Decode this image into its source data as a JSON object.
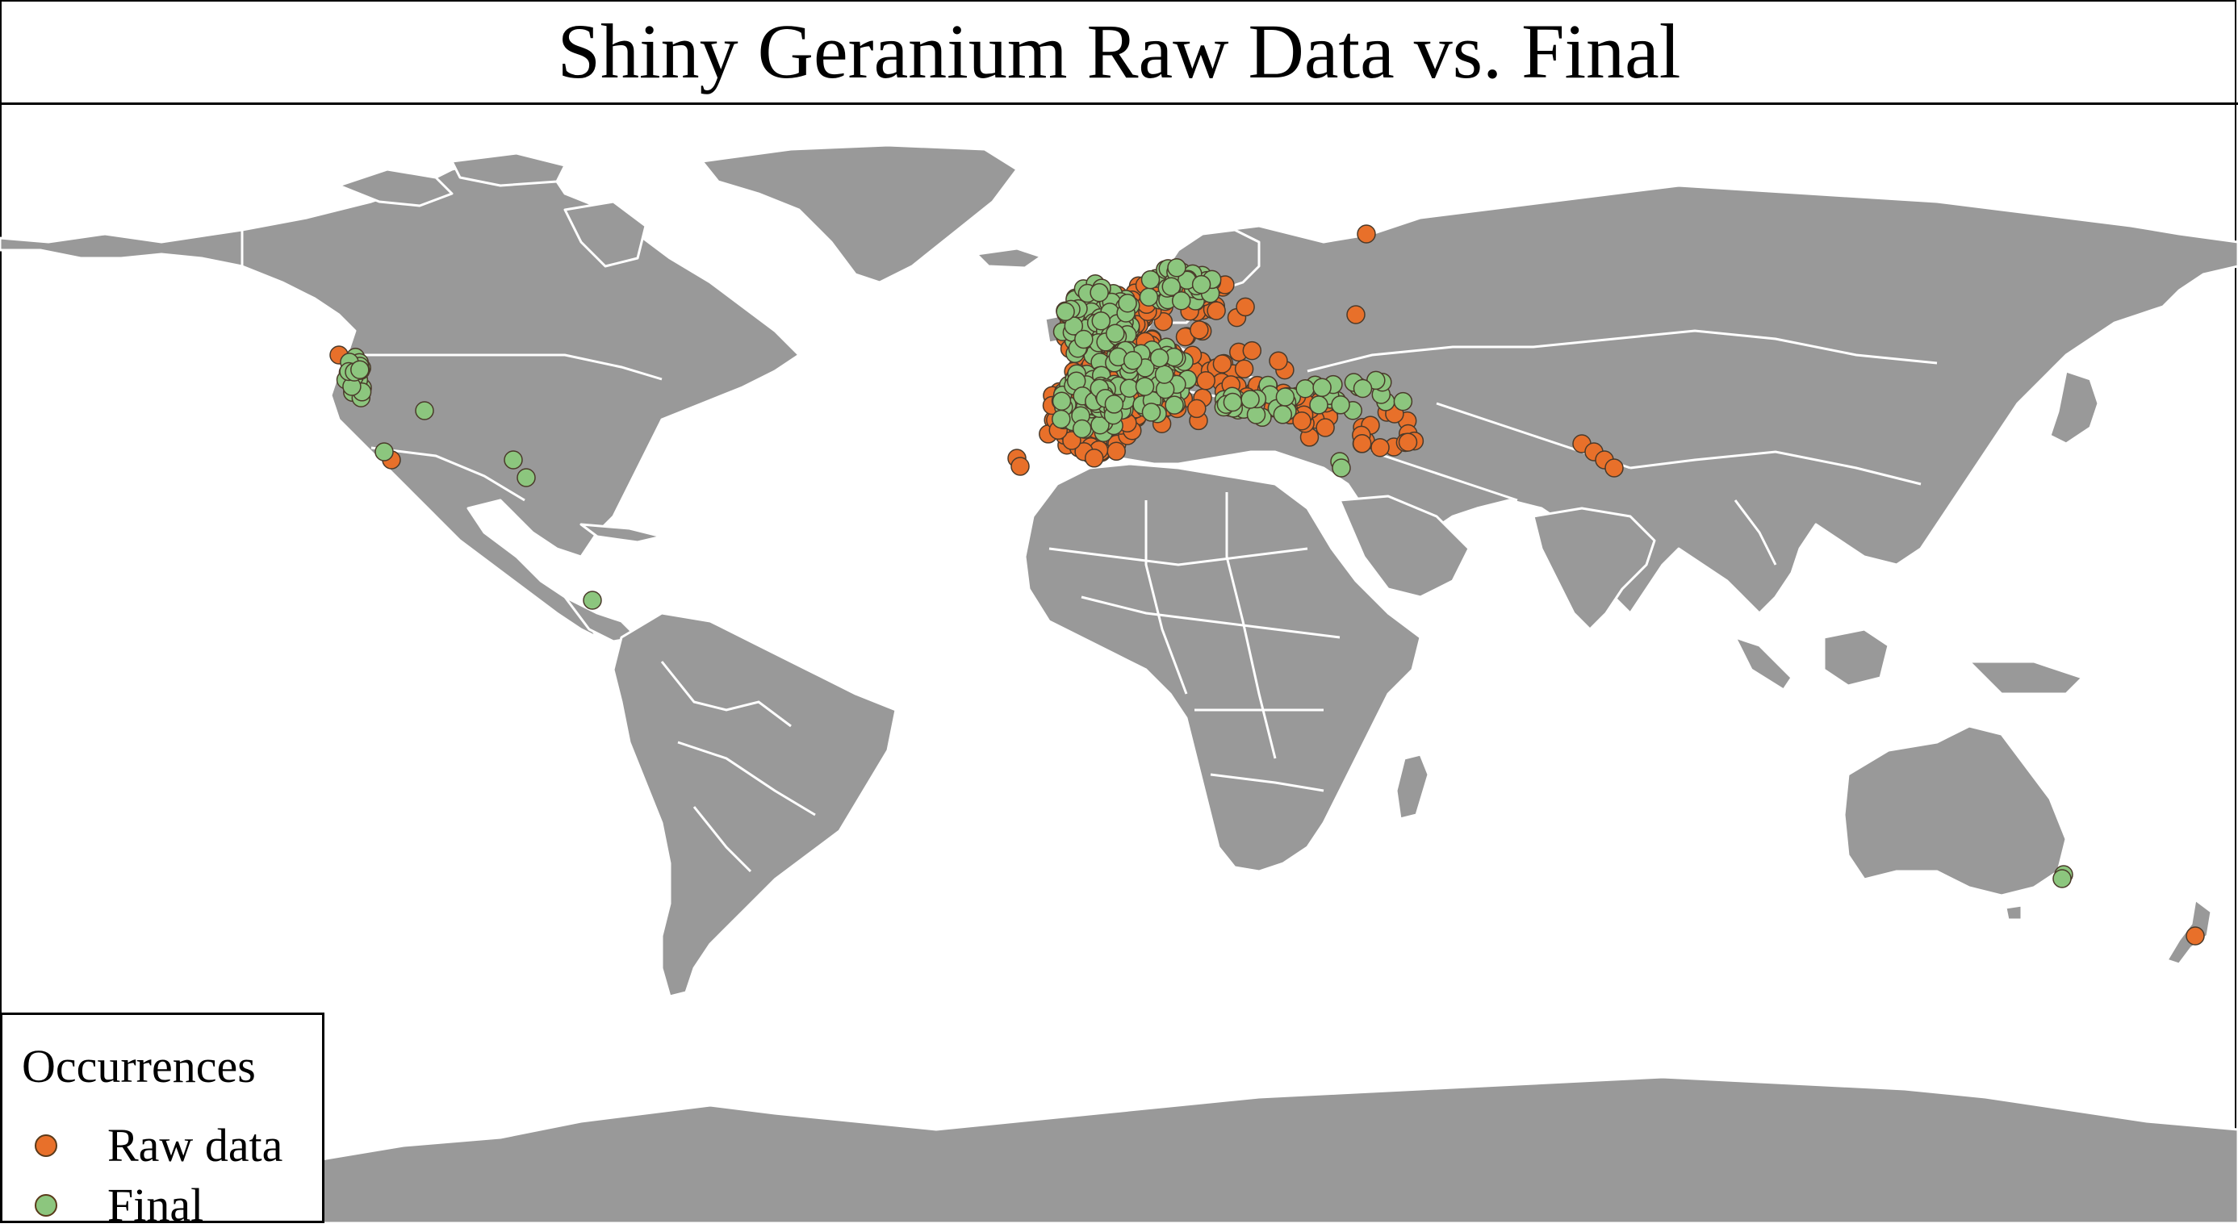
{
  "title": "Shiny Geranium Raw Data vs. Final",
  "colors": {
    "land": "#999999",
    "border": "#ffffff",
    "water": "#ffffff",
    "raw": "#e8702a",
    "final": "#8cc67e",
    "marker_edge": "#4a3a2a"
  },
  "legend": {
    "title": "Occurrences",
    "items": [
      {
        "label": "Raw data",
        "color": "#e8702a"
      },
      {
        "label": "Final",
        "color": "#8cc67e"
      }
    ]
  }
}
